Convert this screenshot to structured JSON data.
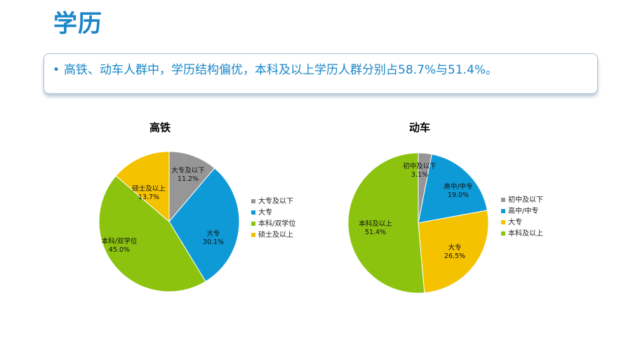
{
  "page": {
    "title": "学历",
    "summary": "高铁、动车人群中，学历结构偏优，本科及以上学历人群分别占58.7%与51.4%。",
    "bullet": "•"
  },
  "chart_data": [
    {
      "type": "pie",
      "title": "高铁",
      "categories": [
        "大专及以下",
        "大专",
        "本科/双学位",
        "硕士及以上"
      ],
      "values": [
        11.2,
        30.1,
        45.0,
        13.7
      ],
      "labels": [
        "11.2%",
        "30.1%",
        "45.0%",
        "13.7%"
      ],
      "colors": [
        "#969696",
        "#0e9ad6",
        "#8bc30f",
        "#f5c200"
      ],
      "legend": "right"
    },
    {
      "type": "pie",
      "title": "动车",
      "categories": [
        "初中及以下",
        "高中/中专",
        "大专",
        "本科及以上"
      ],
      "values": [
        3.1,
        19.0,
        26.5,
        51.4
      ],
      "labels": [
        "3.1%",
        "19.0%",
        "26.5%",
        "51.4%"
      ],
      "colors": [
        "#969696",
        "#0e9ad6",
        "#f5c200",
        "#8bc30f"
      ],
      "legend": "right"
    }
  ]
}
